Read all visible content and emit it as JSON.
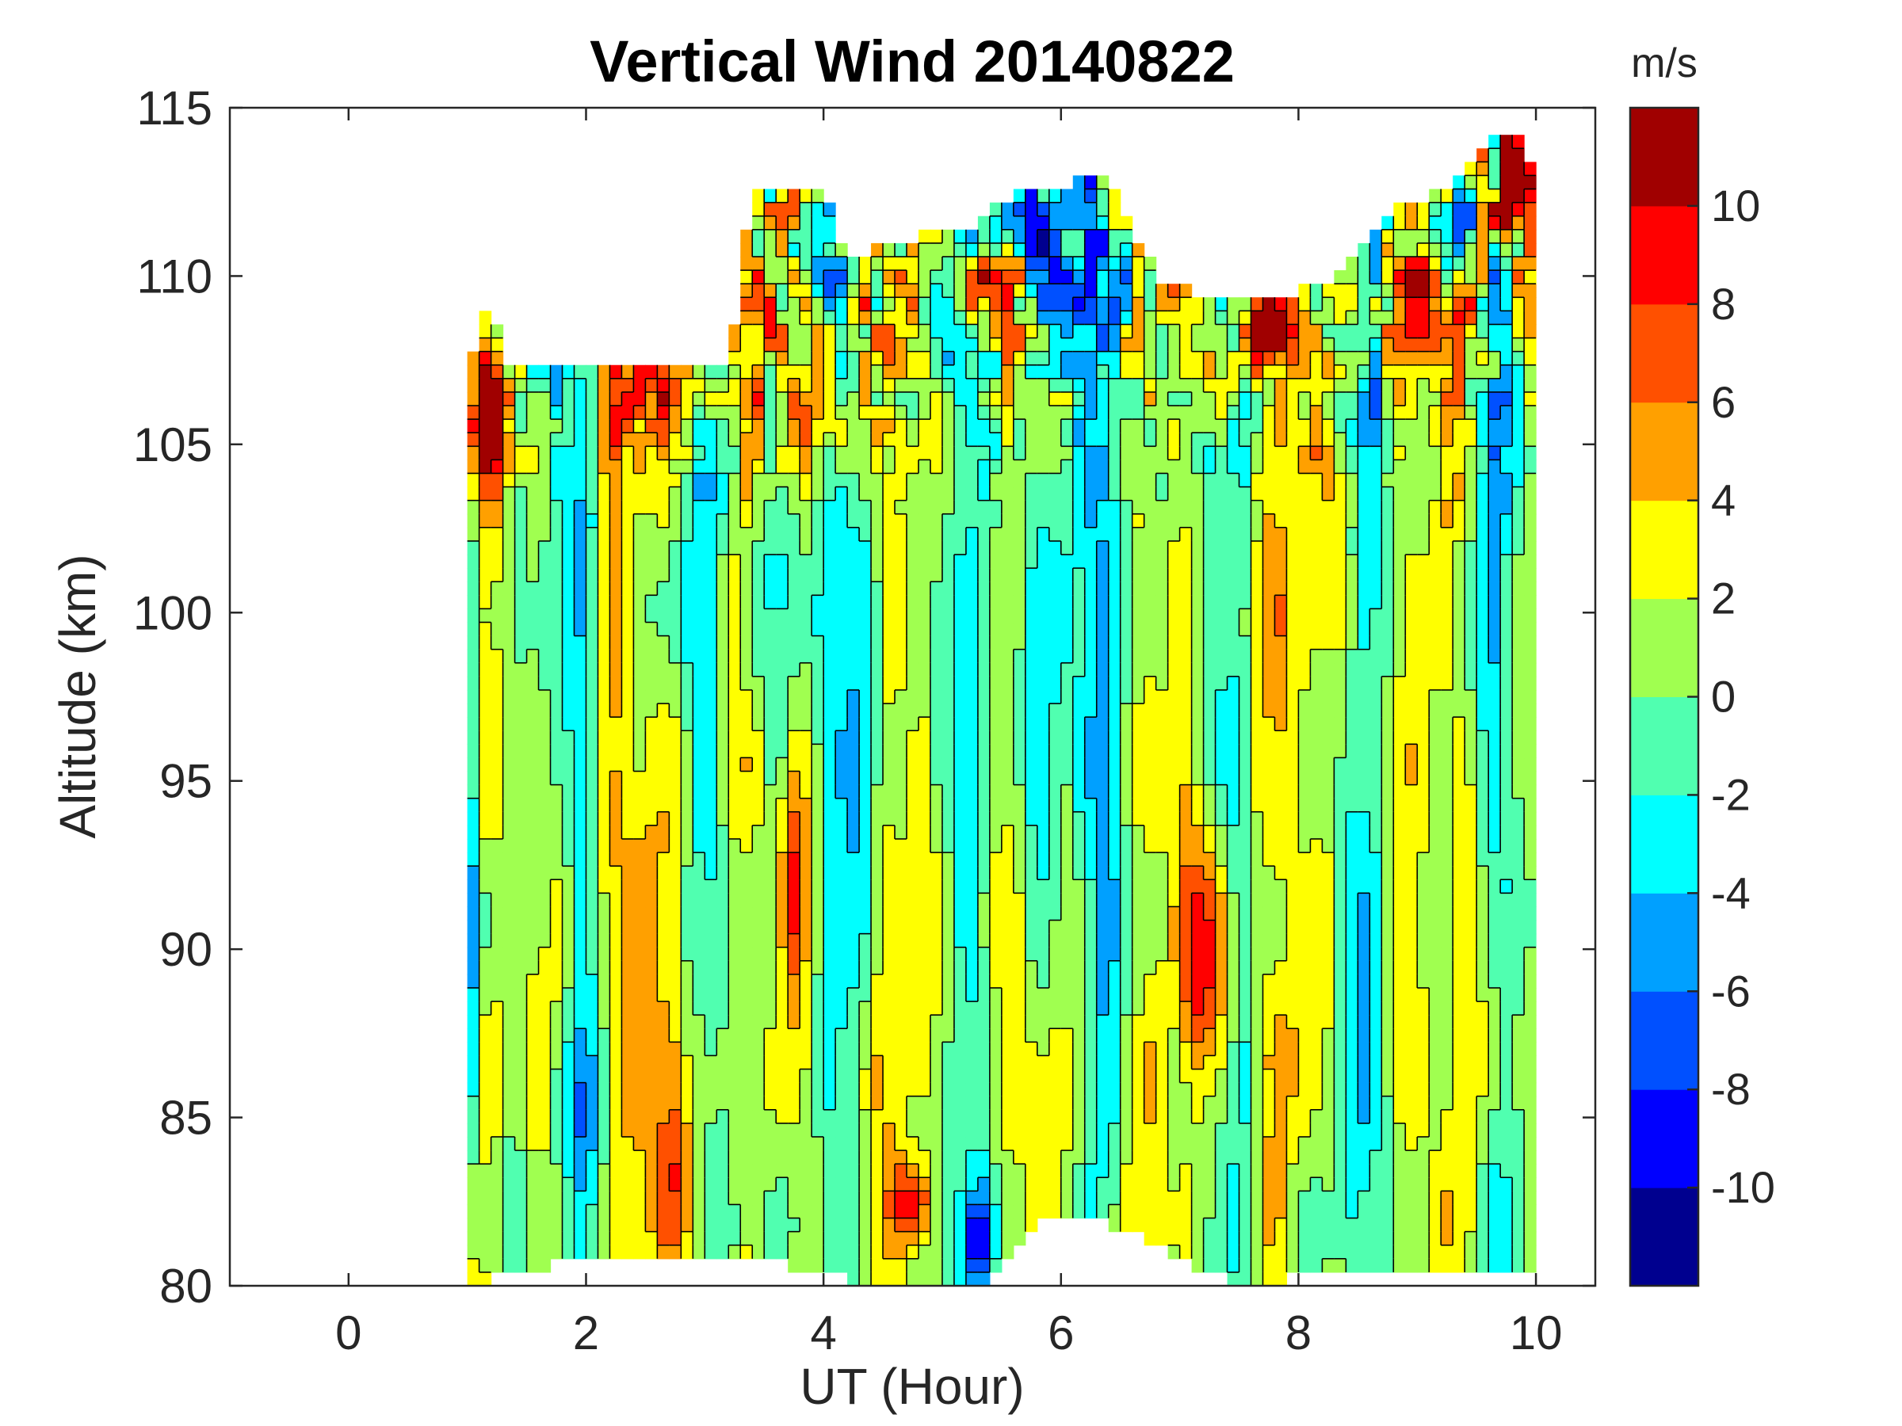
{
  "chart_data": {
    "type": "heatmap",
    "subtype": "filled-contour",
    "title": "Vertical Wind 20140822",
    "xlabel": "UT (Hour)",
    "ylabel": "Altitude (km)",
    "xlim": [
      -1,
      10.5
    ],
    "ylim": [
      80,
      115
    ],
    "xticks": [
      0,
      2,
      4,
      6,
      8,
      10
    ],
    "yticks": [
      80,
      85,
      90,
      95,
      100,
      105,
      110,
      115
    ],
    "x_tick_labels": [
      "0",
      "2",
      "4",
      "6",
      "8",
      "10"
    ],
    "y_tick_labels": [
      "80",
      "85",
      "90",
      "95",
      "100",
      "105",
      "110",
      "115"
    ],
    "data_extent": {
      "x": [
        1.0,
        10.0
      ],
      "top_altitude_profile": [
        [
          1.0,
          107
        ],
        [
          1.2,
          109.5
        ],
        [
          1.3,
          107.5
        ],
        [
          2.1,
          107.5
        ],
        [
          3.2,
          107.5
        ],
        [
          3.4,
          112.5
        ],
        [
          4.0,
          112.5
        ],
        [
          4.2,
          110.5
        ],
        [
          4.6,
          111
        ],
        [
          5.3,
          111.5
        ],
        [
          5.6,
          112.5
        ],
        [
          6.4,
          113
        ],
        [
          6.8,
          110
        ],
        [
          7.2,
          109.5
        ],
        [
          7.9,
          109.5
        ],
        [
          8.3,
          110
        ],
        [
          8.8,
          112
        ],
        [
          9.2,
          112.5
        ],
        [
          9.6,
          114
        ],
        [
          9.8,
          114.5
        ],
        [
          10.0,
          113
        ]
      ],
      "bottom_altitude_profile": [
        [
          1.0,
          80
        ],
        [
          1.5,
          80.5
        ],
        [
          2.5,
          81
        ],
        [
          3.5,
          81
        ],
        [
          3.8,
          80.5
        ],
        [
          4.5,
          80
        ],
        [
          5.3,
          80
        ],
        [
          5.8,
          82
        ],
        [
          6.3,
          82
        ],
        [
          6.9,
          81
        ],
        [
          7.5,
          80
        ],
        [
          8.5,
          80.5
        ],
        [
          10.0,
          80.5
        ]
      ]
    },
    "colorbar": {
      "units": "m/s",
      "levels": [
        -12,
        -10,
        -8,
        -6,
        -4,
        -2,
        0,
        2,
        4,
        6,
        8,
        10,
        12
      ],
      "tick_labels": [
        "-10",
        "-8",
        "-6",
        "-4",
        "-2",
        "0",
        "2",
        "4",
        "6",
        "8",
        "10"
      ],
      "colors": [
        "#00008f",
        "#0000ff",
        "#0050ff",
        "#00a0ff",
        "#00ffff",
        "#50ffb0",
        "#a0ff50",
        "#ffff00",
        "#ffa000",
        "#ff5000",
        "#ff0000",
        "#a00000"
      ]
    },
    "features": [
      {
        "type": "max",
        "x": 7.2,
        "y": 89.8,
        "sx": 0.15,
        "sy": 2.8,
        "value": 10
      },
      {
        "type": "max",
        "x": 3.75,
        "y": 91.5,
        "sx": 0.1,
        "sy": 2.2,
        "value": 9
      },
      {
        "type": "max",
        "x": 2.55,
        "y": 91.5,
        "sx": 0.25,
        "sy": 4.5,
        "value": 4
      },
      {
        "type": "max",
        "x": 2.75,
        "y": 82.8,
        "sx": 0.15,
        "sy": 2.0,
        "value": 7
      },
      {
        "type": "max",
        "x": 1.8,
        "y": 88.5,
        "sx": 0.15,
        "sy": 3.0,
        "value": 4
      },
      {
        "type": "max",
        "x": 9.6,
        "y": 88.0,
        "sx": 0.2,
        "sy": 5.0,
        "value": 3
      },
      {
        "type": "min",
        "x": 5.9,
        "y": 99.5,
        "sx": 0.25,
        "sy": 6.0,
        "value": -5
      },
      {
        "type": "min",
        "x": 3.6,
        "y": 101.0,
        "sx": 0.12,
        "sy": 3.0,
        "value": -5
      },
      {
        "type": "min",
        "x": 1.0,
        "y": 92.0,
        "sx": 0.08,
        "sy": 6.0,
        "value": -6
      },
      {
        "type": "min",
        "x": 2.0,
        "y": 85.5,
        "sx": 0.1,
        "sy": 2.5,
        "value": -6
      },
      {
        "type": "max",
        "x": 1.2,
        "y": 106.0,
        "sx": 0.12,
        "sy": 1.5,
        "value": 11
      },
      {
        "type": "max",
        "x": 2.6,
        "y": 106.5,
        "sx": 0.4,
        "sy": 1.2,
        "value": 6
      },
      {
        "type": "max",
        "x": 4.0,
        "y": 106.5,
        "sx": 0.25,
        "sy": 2.0,
        "value": 6
      },
      {
        "type": "max",
        "x": 5.3,
        "y": 110.0,
        "sx": 0.2,
        "sy": 1.0,
        "value": 9
      },
      {
        "type": "min",
        "x": 6.0,
        "y": 110.0,
        "sx": 0.2,
        "sy": 1.2,
        "value": -7
      },
      {
        "type": "max",
        "x": 7.7,
        "y": 108.5,
        "sx": 0.3,
        "sy": 1.0,
        "value": 8
      },
      {
        "type": "max",
        "x": 9.0,
        "y": 109.0,
        "sx": 0.3,
        "sy": 1.5,
        "value": 10
      },
      {
        "type": "max",
        "x": 9.8,
        "y": 112.5,
        "sx": 0.15,
        "sy": 1.5,
        "value": 11
      },
      {
        "type": "min",
        "x": 9.3,
        "y": 111.0,
        "sx": 0.12,
        "sy": 1.0,
        "value": -8
      },
      {
        "type": "max",
        "x": 4.75,
        "y": 82.5,
        "sx": 0.12,
        "sy": 0.8,
        "value": 8
      },
      {
        "type": "min",
        "x": 5.3,
        "y": 81.5,
        "sx": 0.1,
        "sy": 1.0,
        "value": -8
      },
      {
        "type": "min",
        "x": 4.3,
        "y": 95.0,
        "sx": 0.1,
        "sy": 8.0,
        "value": -3
      },
      {
        "type": "max",
        "x": 7.8,
        "y": 96.0,
        "sx": 0.2,
        "sy": 8.0,
        "value": 2
      }
    ]
  }
}
